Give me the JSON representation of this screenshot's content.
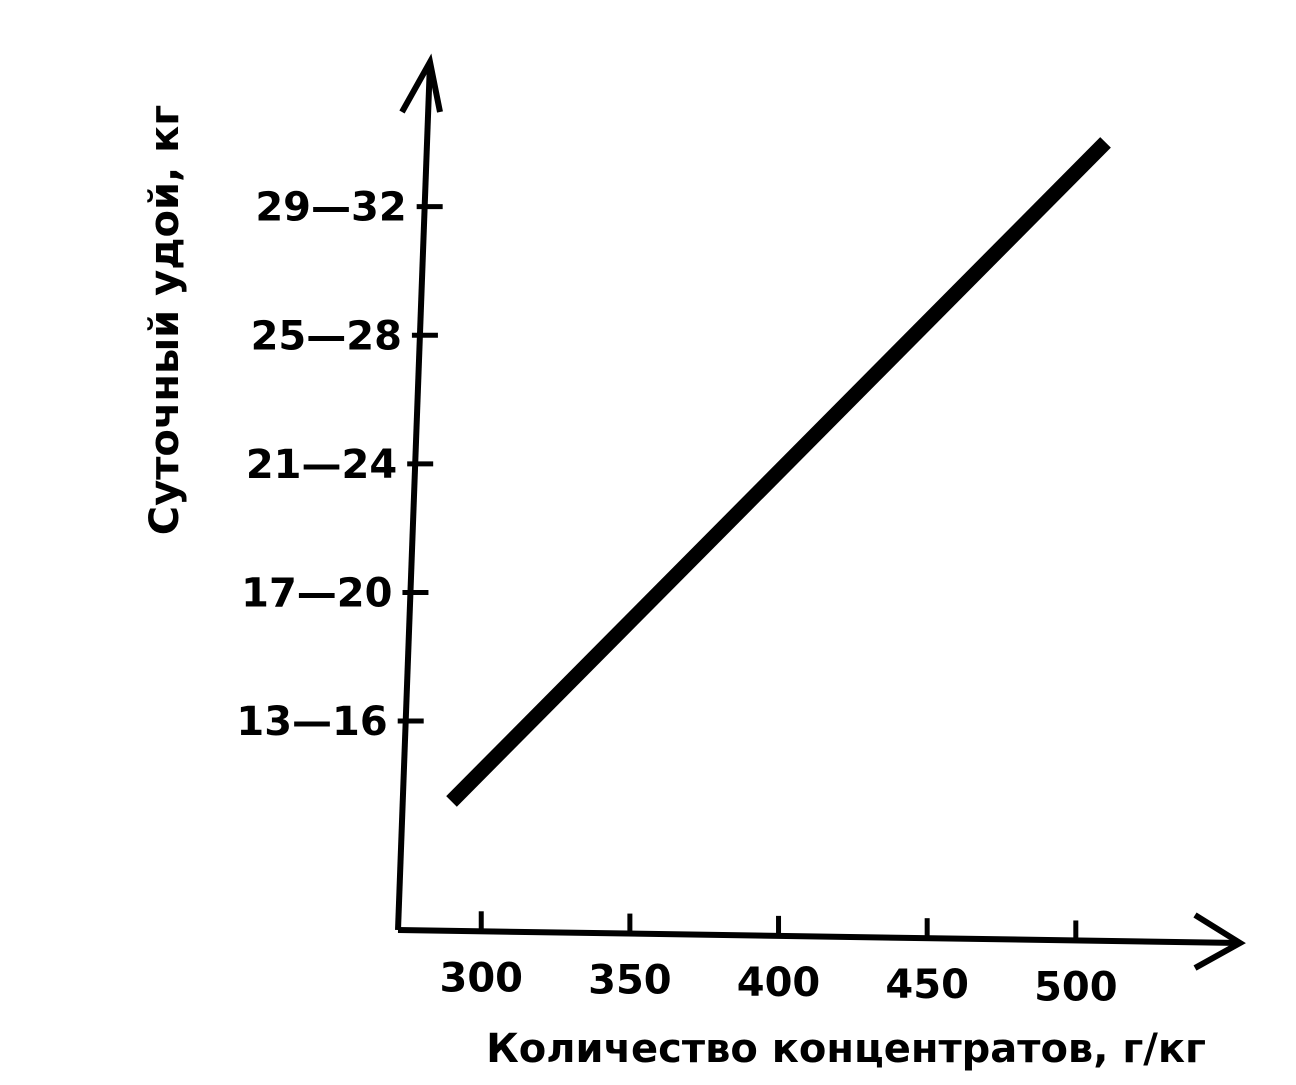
{
  "chart_data": {
    "type": "line",
    "title": "",
    "xlabel": "Количество концентратов, г/кг",
    "ylabel": "Суточный удой, кг",
    "x_ticks": [
      "300",
      "350",
      "400",
      "450",
      "500"
    ],
    "y_ticks": [
      "13—16",
      "17—20",
      "21—24",
      "25—28",
      "29—32"
    ],
    "series": [
      {
        "x": [
          290,
          510
        ],
        "y": [
          12,
          32.5
        ]
      }
    ],
    "xlim": [
      272,
      530
    ],
    "ylim": [
      8,
      35
    ],
    "grid": false,
    "legend": "none",
    "colors": {
      "line": "#000000",
      "axis": "#000000",
      "background": "#ffffff"
    }
  }
}
